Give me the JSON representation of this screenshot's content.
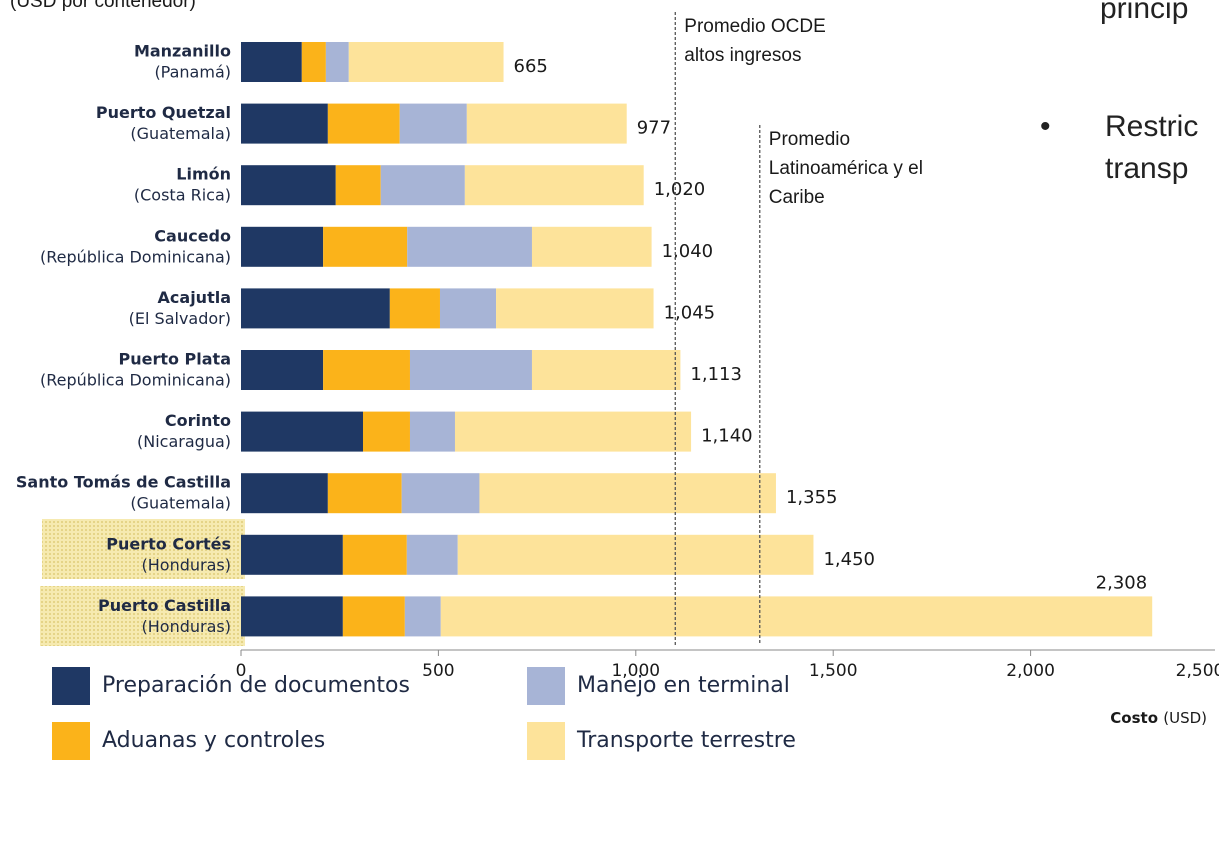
{
  "chart_data": {
    "type": "stacked_barh",
    "subtitle": "(USD por contenedor)",
    "slide_text": [
      "princip",
      "Restric",
      "transp"
    ],
    "categories": [
      "Manzanillo",
      "Puerto Quetzal",
      "Limón",
      "Caucedo",
      "Acajutla",
      "Puerto Plata",
      "Corinto",
      "Santo Tomás de Castilla",
      "Puerto Cortés",
      "Puerto Castilla"
    ],
    "subcategories": [
      "(Panamá)",
      "(Guatemala)",
      "(Costa Rica)",
      "(República Dominicana)",
      "(El Salvador)",
      "(República Dominicana)",
      "(Nicaragua)",
      "(Guatemala)",
      "(Honduras)",
      "(Honduras)"
    ],
    "series": [
      {
        "name": "Preparación de documentos",
        "color": "#1f3864",
        "values": [
          154,
          220,
          240,
          208,
          377,
          208,
          309,
          220,
          258,
          258
        ]
      },
      {
        "name": "Aduanas y controles",
        "color": "#fbb31a",
        "values": [
          61,
          182,
          114,
          213,
          127,
          220,
          119,
          187,
          162,
          157
        ]
      },
      {
        "name": "Manejo en terminal",
        "color": "#a7b4d6",
        "values": [
          58,
          170,
          213,
          316,
          142,
          309,
          114,
          197,
          129,
          91
        ]
      },
      {
        "name": "Transporte terrestre",
        "color": "#fde39a",
        "values": [
          392,
          405,
          453,
          303,
          399,
          376,
          598,
          751,
          901,
          1802
        ]
      }
    ],
    "totals": [
      665,
      977,
      1020,
      1040,
      1045,
      1113,
      1140,
      1355,
      1450,
      2308
    ],
    "total_labels": [
      "665",
      "977",
      "1,020",
      "1,040",
      "1,045",
      "1,113",
      "1,140",
      "1,355",
      "1,450",
      "2,308"
    ],
    "reference_lines": [
      {
        "value": 1100,
        "label": [
          "Promedio OCDE",
          "altos ingresos"
        ]
      },
      {
        "value": 1314,
        "label": [
          "Promedio",
          "Latinoamérica y el",
          "Caribe"
        ]
      }
    ],
    "xlim": [
      0,
      2500
    ],
    "xticks": [
      0,
      {
        "value": 500,
        "label": "500"
      },
      {
        "value": 1000,
        "label": "1,000"
      },
      {
        "value": 1500,
        "label": "1,500"
      },
      {
        "value": 2000,
        "label": "2,000"
      },
      {
        "value": 2500,
        "label": "2,500"
      }
    ],
    "xlabel_bold": "Costo",
    "xlabel": "(USD)",
    "grid": false
  }
}
